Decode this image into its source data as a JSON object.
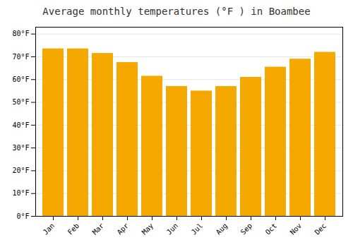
{
  "chart_data": {
    "type": "bar",
    "title": "Average monthly temperatures (°F ) in Boambee",
    "categories": [
      "Jan",
      "Feb",
      "Mar",
      "Apr",
      "May",
      "Jun",
      "Jul",
      "Aug",
      "Sep",
      "Oct",
      "Nov",
      "Dec"
    ],
    "values": [
      73.5,
      73.5,
      71.5,
      67.5,
      61.5,
      57.0,
      55.0,
      57.0,
      61.0,
      65.5,
      69.0,
      72.0
    ],
    "color": "#F5A800",
    "ylim": [
      0,
      83
    ],
    "yticks": [
      {
        "value": 0,
        "label": "0°F"
      },
      {
        "value": 10,
        "label": "10°F"
      },
      {
        "value": 20,
        "label": "20°F"
      },
      {
        "value": 30,
        "label": "30°F"
      },
      {
        "value": 40,
        "label": "40°F"
      },
      {
        "value": 50,
        "label": "50°F"
      },
      {
        "value": 60,
        "label": "60°F"
      },
      {
        "value": 70,
        "label": "70°F"
      },
      {
        "value": 80,
        "label": "80°F"
      }
    ],
    "grid": true
  }
}
